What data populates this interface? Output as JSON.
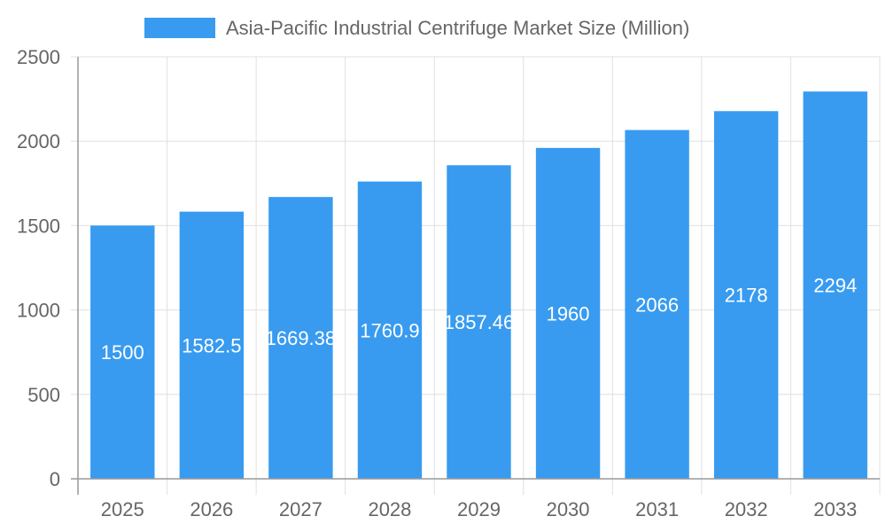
{
  "chart_data": {
    "type": "bar",
    "title": "",
    "xlabel": "",
    "ylabel": "",
    "categories": [
      "2025",
      "2026",
      "2027",
      "2028",
      "2029",
      "2030",
      "2031",
      "2032",
      "2033"
    ],
    "series": [
      {
        "name": "Asia-Pacific Industrial Centrifuge Market Size (Million)",
        "values": [
          1500,
          1582.5,
          1669.38,
          1760.9,
          1857.46,
          1960,
          2066,
          2178,
          2294
        ],
        "labels": [
          "1500",
          "1582.5",
          "1669.38",
          "1760.9",
          "1857.46",
          "1960",
          "2066",
          "2178",
          "2294"
        ]
      }
    ],
    "ylim": [
      0,
      2500
    ],
    "yticks": [
      "0",
      "500",
      "1000",
      "1500",
      "2000",
      "2500"
    ],
    "grid": true,
    "legend_position": "top",
    "colors": {
      "bar": "#389BF0",
      "grid": "#E0E0E0",
      "text": "#666666",
      "label": "#FFFFFF"
    }
  }
}
